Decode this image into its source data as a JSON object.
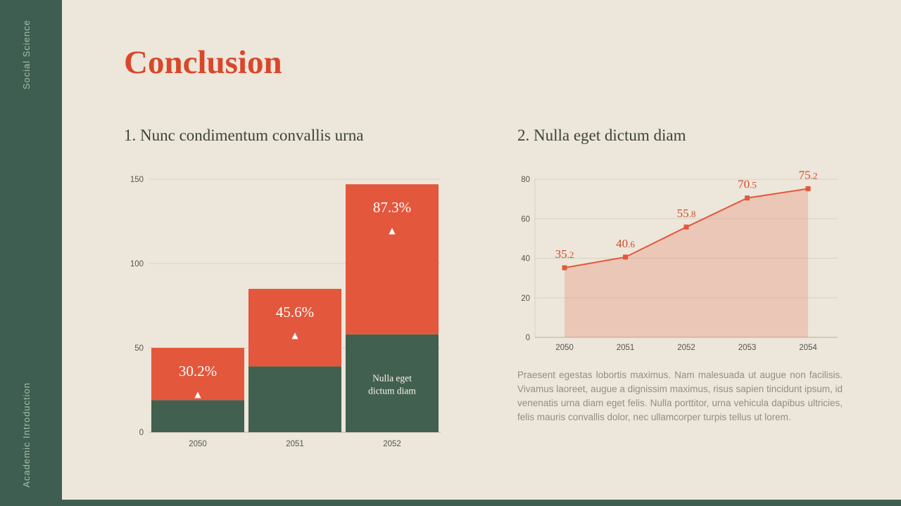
{
  "sidebar": {
    "top_label": "Social Science",
    "bottom_label": "Academic Introduction"
  },
  "title": "Conclusion",
  "sections": [
    {
      "heading": "1. Nunc condimentum convallis urna"
    },
    {
      "heading": "2. Nulla eget dictum diam"
    }
  ],
  "paragraph": "Praesent egestas lobortis maximus. Nam malesuada ut augue non facilisis. Vivamus laoreet, augue a dignissim maximus, risus sapien tincidunt ipsum, id venenatis urna diam eget felis. Nulla porttitor, urna vehicula dapibus ultricies, felis mauris convallis dolor, nec ullamcorper turpis tellus ut lorem.",
  "colors": {
    "background": "#EDE6DA",
    "sidebar_green": "#3D5E50",
    "accent_red": "#D9472B",
    "bar_orange": "#E3573C",
    "bar_green": "#41604F",
    "grid": "#D9D2C2",
    "axis": "#B9B2A3"
  },
  "chart_data": [
    {
      "type": "bar",
      "stacked": true,
      "title": "1. Nunc condimentum convallis urna",
      "categories": [
        "2050",
        "2051",
        "2052"
      ],
      "series": [
        {
          "name": "bottom-segment",
          "color": "#41604F",
          "values": [
            19,
            39,
            58
          ]
        },
        {
          "name": "top-segment",
          "color": "#E3573C",
          "values": [
            31,
            46,
            89
          ]
        }
      ],
      "totals": [
        50,
        85,
        147
      ],
      "bar_labels": [
        "30.2%",
        "45.6%",
        "87.3%"
      ],
      "bar_label_marker": "▲",
      "inside_label": {
        "bar_index": 2,
        "text": "Nulla eget\ndictum diam"
      },
      "xlabel": "",
      "ylabel": "",
      "ylim": [
        0,
        150
      ],
      "yticks": [
        0,
        50,
        100,
        150
      ],
      "grid": true,
      "legend": "none"
    },
    {
      "type": "line",
      "title": "2. Nulla eget dictum diam",
      "x": [
        "2050",
        "2051",
        "2052",
        "2053",
        "2054"
      ],
      "values": [
        35.2,
        40.6,
        55.8,
        70.5,
        75.2
      ],
      "labels": [
        "35.2",
        "40.6",
        "55.8",
        "70.5",
        "75.2"
      ],
      "color": "#E3573C",
      "area": true,
      "area_fill": "rgba(227,90,61,0.22)",
      "marker": "square",
      "xlabel": "",
      "ylabel": "",
      "ylim": [
        0,
        80
      ],
      "yticks": [
        0,
        20,
        40,
        60,
        80
      ],
      "grid": true,
      "legend": "none"
    }
  ]
}
